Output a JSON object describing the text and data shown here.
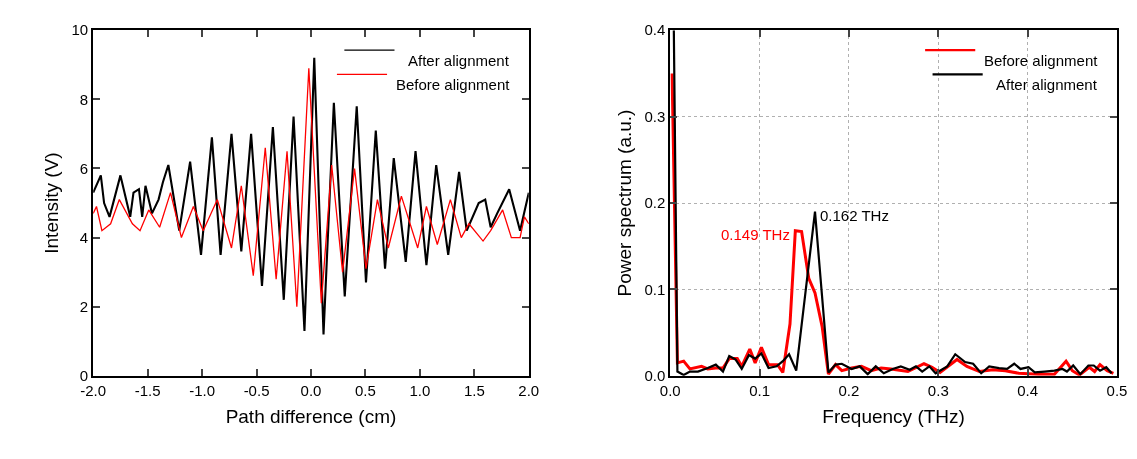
{
  "chart_data": [
    {
      "type": "line",
      "xlabel": "Path difference (cm)",
      "ylabel": "Intensity (V)",
      "xlim": [
        -2,
        2
      ],
      "ylim": [
        0,
        10
      ],
      "xticks": [
        {
          "value": -2,
          "label": "-2.0"
        },
        {
          "value": -1.5,
          "label": "-1.5"
        },
        {
          "value": -1,
          "label": "-1.0"
        },
        {
          "value": -0.5,
          "label": "-0.5"
        },
        {
          "value": 0,
          "label": "0.0"
        },
        {
          "value": 0.5,
          "label": "0.5"
        },
        {
          "value": 1,
          "label": "1.0"
        },
        {
          "value": 1.5,
          "label": "1.5"
        },
        {
          "value": 2,
          "label": "2.0"
        }
      ],
      "yticks": [
        0,
        2,
        4,
        6,
        8,
        10
      ],
      "grid": false,
      "legend": "top right",
      "marker": "none",
      "line_style": "solid",
      "series": [
        {
          "name": "After alignment",
          "color": "#000000",
          "x": [
            -2.0,
            -1.93,
            -1.9,
            -1.85,
            -1.75,
            -1.66,
            -1.63,
            -1.58,
            -1.55,
            -1.52,
            -1.46,
            -1.4,
            -1.36,
            -1.31,
            -1.21,
            -1.11,
            -1.01,
            -0.91,
            -0.83,
            -0.73,
            -0.64,
            -0.55,
            -0.45,
            -0.35,
            -0.25,
            -0.16,
            -0.06,
            0.03,
            0.115,
            0.21,
            0.31,
            0.42,
            0.505,
            0.595,
            0.68,
            0.76,
            0.87,
            0.96,
            1.06,
            1.15,
            1.26,
            1.36,
            1.43,
            1.54,
            1.6,
            1.65,
            1.71,
            1.82,
            1.92,
            2.0
          ],
          "values": [
            5.3,
            5.8,
            5.0,
            4.6,
            5.8,
            4.6,
            5.3,
            5.4,
            4.6,
            5.5,
            4.7,
            5.1,
            5.6,
            6.1,
            4.2,
            6.2,
            3.5,
            6.9,
            3.5,
            7.0,
            3.6,
            7.0,
            2.6,
            7.2,
            2.2,
            7.5,
            1.3,
            9.2,
            1.2,
            7.9,
            2.3,
            7.8,
            2.7,
            7.1,
            3.1,
            6.3,
            3.3,
            6.5,
            3.2,
            6.1,
            3.5,
            5.9,
            4.2,
            5.0,
            5.1,
            4.3,
            4.7,
            5.4,
            4.2,
            5.3
          ]
        },
        {
          "name": "Before alignment",
          "color": "#ff0000",
          "x": [
            -2.0,
            -1.97,
            -1.92,
            -1.84,
            -1.76,
            -1.64,
            -1.57,
            -1.49,
            -1.39,
            -1.29,
            -1.19,
            -1.08,
            -0.99,
            -0.86,
            -0.73,
            -0.64,
            -0.53,
            -0.42,
            -0.32,
            -0.22,
            -0.13,
            -0.02,
            0.095,
            0.19,
            0.29,
            0.4,
            0.505,
            0.61,
            0.71,
            0.83,
            0.98,
            1.06,
            1.16,
            1.28,
            1.38,
            1.45,
            1.58,
            1.65,
            1.76,
            1.84,
            1.92,
            1.96,
            2.0
          ],
          "values": [
            4.7,
            4.9,
            4.2,
            4.4,
            5.1,
            4.4,
            4.2,
            4.8,
            4.3,
            5.3,
            4.0,
            4.9,
            4.2,
            5.1,
            3.7,
            5.5,
            2.9,
            6.6,
            2.8,
            6.5,
            2.0,
            8.9,
            2.1,
            6.1,
            3.0,
            6.0,
            3.1,
            5.1,
            3.7,
            5.2,
            3.7,
            4.9,
            3.8,
            5.1,
            4.0,
            4.4,
            3.9,
            4.2,
            4.8,
            4.0,
            4.0,
            4.6,
            4.4
          ]
        }
      ]
    },
    {
      "type": "line",
      "xlabel": "Frequency (THz)",
      "ylabel": "Power spectrum (a.u.)",
      "xlim": [
        0,
        0.5
      ],
      "ylim": [
        0,
        0.4
      ],
      "xticks": [
        {
          "value": 0,
          "label": "0.0"
        },
        0.1,
        0.2,
        0.3,
        0.4,
        0.5
      ],
      "yticks": [
        {
          "value": 0,
          "label": "0.0"
        },
        0.1,
        0.2,
        0.3,
        0.4
      ],
      "grid": true,
      "legend": "top right",
      "marker": "none",
      "line_style": "solid",
      "annotations": [
        {
          "text": "0.149 THz",
          "x": 0.147,
          "y": 0.167
        },
        {
          "text": "0.162 THz",
          "x": 0.162,
          "y": 0.19
        }
      ],
      "series": [
        {
          "name": "Before alignment",
          "color": "#ff0000",
          "x": [
            0.002,
            0.008,
            0.015,
            0.022,
            0.035,
            0.042,
            0.051,
            0.059,
            0.066,
            0.075,
            0.08,
            0.089,
            0.095,
            0.102,
            0.11,
            0.12,
            0.126,
            0.134,
            0.14,
            0.147,
            0.155,
            0.162,
            0.17,
            0.177,
            0.185,
            0.192,
            0.203,
            0.214,
            0.225,
            0.236,
            0.247,
            0.266,
            0.284,
            0.293,
            0.302,
            0.321,
            0.332,
            0.346,
            0.361,
            0.375,
            0.39,
            0.412,
            0.43,
            0.443,
            0.45,
            0.458,
            0.469,
            0.475,
            0.481,
            0.489,
            0.496
          ],
          "values": [
            0.35,
            0.015,
            0.017,
            0.008,
            0.011,
            0.008,
            0.009,
            0.009,
            0.02,
            0.02,
            0.011,
            0.031,
            0.015,
            0.033,
            0.013,
            0.013,
            0.004,
            0.06,
            0.168,
            0.167,
            0.113,
            0.096,
            0.057,
            0.002,
            0.013,
            0.006,
            0.009,
            0.011,
            0.006,
            0.009,
            0.008,
            0.005,
            0.014,
            0.01,
            0.004,
            0.019,
            0.011,
            0.005,
            0.007,
            0.006,
            0.003,
            0.002,
            0.002,
            0.017,
            0.006,
            0.001,
            0.01,
            0.005,
            0.013,
            0.006,
            0.003
          ]
        },
        {
          "name": "After alignment",
          "color": "#000000",
          "x": [
            0.004,
            0.008,
            0.015,
            0.022,
            0.031,
            0.042,
            0.051,
            0.059,
            0.066,
            0.073,
            0.08,
            0.088,
            0.095,
            0.102,
            0.11,
            0.119,
            0.126,
            0.133,
            0.141,
            0.162,
            0.177,
            0.185,
            0.192,
            0.203,
            0.212,
            0.221,
            0.23,
            0.239,
            0.249,
            0.258,
            0.268,
            0.275,
            0.282,
            0.29,
            0.297,
            0.31,
            0.319,
            0.33,
            0.339,
            0.348,
            0.357,
            0.368,
            0.377,
            0.385,
            0.392,
            0.401,
            0.408,
            0.419,
            0.43,
            0.439,
            0.444,
            0.451,
            0.459,
            0.468,
            0.474,
            0.481,
            0.488,
            0.494
          ],
          "values": [
            0.4,
            0.005,
            0.001,
            0.005,
            0.005,
            0.009,
            0.013,
            0.005,
            0.023,
            0.019,
            0.008,
            0.024,
            0.02,
            0.026,
            0.009,
            0.011,
            0.017,
            0.025,
            0.006,
            0.19,
            0.004,
            0.013,
            0.014,
            0.008,
            0.011,
            0.002,
            0.011,
            0.003,
            0.008,
            0.011,
            0.007,
            0.011,
            0.005,
            0.011,
            0.003,
            0.011,
            0.025,
            0.016,
            0.014,
            0.003,
            0.011,
            0.009,
            0.008,
            0.014,
            0.008,
            0.01,
            0.004,
            0.005,
            0.006,
            0.008,
            0.005,
            0.012,
            0.002,
            0.012,
            0.012,
            0.006,
            0.01,
            0.003
          ]
        }
      ]
    }
  ]
}
